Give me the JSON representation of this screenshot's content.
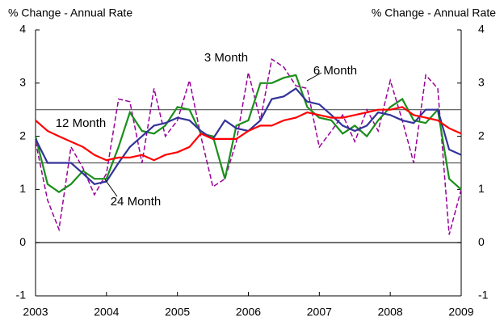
{
  "chart_data": {
    "type": "line",
    "y_label": "% Change - Annual Rate",
    "y2_label": "% Change - Annual Rate",
    "x": [
      2003.0,
      2003.17,
      2003.33,
      2003.5,
      2003.67,
      2003.83,
      2004.0,
      2004.17,
      2004.33,
      2004.5,
      2004.67,
      2004.83,
      2005.0,
      2005.17,
      2005.33,
      2005.5,
      2005.67,
      2005.83,
      2006.0,
      2006.17,
      2006.33,
      2006.5,
      2006.67,
      2006.83,
      2007.0,
      2007.17,
      2007.33,
      2007.5,
      2007.67,
      2007.83,
      2008.0,
      2008.17,
      2008.33,
      2008.5,
      2008.67,
      2008.83,
      2009.0
    ],
    "xlim": [
      2003,
      2009
    ],
    "xticks": [
      2003,
      2004,
      2005,
      2006,
      2007,
      2008,
      2009
    ],
    "ylim": [
      -1,
      4
    ],
    "yticks": [
      -1,
      0,
      1,
      2,
      3,
      4
    ],
    "y2lim": [
      -1,
      4
    ],
    "y2ticks": [
      -1,
      0,
      1,
      2,
      3,
      4
    ],
    "reference_lines": [
      0,
      1.5,
      2.5
    ],
    "series": [
      {
        "name": "3 Month",
        "color": "#990099",
        "dashed": true,
        "values": [
          1.9,
          0.8,
          0.25,
          1.8,
          1.4,
          0.9,
          1.3,
          2.7,
          2.65,
          1.5,
          2.9,
          2.0,
          2.3,
          3.05,
          2.0,
          1.05,
          1.2,
          1.9,
          3.2,
          2.3,
          3.45,
          3.3,
          2.95,
          2.9,
          1.8,
          2.1,
          2.4,
          1.9,
          2.5,
          2.1,
          3.05,
          2.3,
          1.5,
          3.15,
          2.9,
          0.15,
          1.0
        ]
      },
      {
        "name": "6 Month",
        "color": "#1a8f1a",
        "dashed": false,
        "values": [
          2.0,
          1.1,
          0.95,
          1.1,
          1.35,
          1.2,
          1.2,
          1.8,
          2.45,
          2.1,
          2.05,
          2.2,
          2.55,
          2.5,
          2.05,
          2.0,
          1.2,
          2.2,
          2.3,
          3.0,
          3.0,
          3.1,
          3.15,
          2.55,
          2.35,
          2.3,
          2.05,
          2.2,
          2.0,
          2.3,
          2.55,
          2.7,
          2.3,
          2.25,
          2.5,
          1.2,
          1.0
        ]
      },
      {
        "name": "12 Month",
        "color": "#333399",
        "dashed": false,
        "values": [
          1.95,
          1.5,
          1.5,
          1.5,
          1.3,
          1.1,
          1.15,
          1.5,
          1.8,
          2.0,
          2.2,
          2.25,
          2.35,
          2.3,
          2.1,
          1.95,
          2.3,
          2.15,
          2.1,
          2.3,
          2.7,
          2.75,
          2.9,
          2.65,
          2.6,
          2.4,
          2.2,
          2.1,
          2.2,
          2.45,
          2.4,
          2.3,
          2.25,
          2.5,
          2.5,
          1.75,
          1.65
        ]
      },
      {
        "name": "24 Month",
        "color": "#ff0000",
        "dashed": false,
        "values": [
          2.3,
          2.1,
          2.0,
          1.9,
          1.8,
          1.65,
          1.55,
          1.6,
          1.6,
          1.65,
          1.55,
          1.65,
          1.7,
          1.8,
          2.05,
          1.95,
          1.95,
          1.95,
          2.1,
          2.2,
          2.2,
          2.3,
          2.35,
          2.45,
          2.4,
          2.35,
          2.35,
          2.4,
          2.45,
          2.5,
          2.5,
          2.55,
          2.4,
          2.35,
          2.3,
          2.15,
          2.05
        ]
      }
    ]
  }
}
